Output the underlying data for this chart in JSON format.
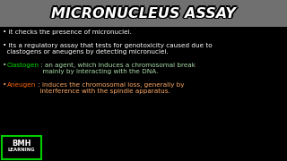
{
  "bg_color": "#000000",
  "title_bg_color": "#707070",
  "title_text": "MICRONUCLEUS ASSAY",
  "title_color": "#FFFFFF",
  "title_outline_color": "#000000",
  "line1": "• it checks the presence of micronuclei.",
  "line1_color": "#FFFFFF",
  "line2": "• its a regulatory assay that tests for genotoxicity caused due to\n  clastogens or aneugens by detecting micronuclei.",
  "line2_color": "#FFFFFF",
  "line3_bullet": "• ",
  "line3_keyword": "Clastogen",
  "line3_keyword_color": "#00DD00",
  "line3_rest": " : an agent, which induces a chromosomal break\n  mainly by interacting with the DNA.",
  "line3_color": "#AADDAA",
  "line4_bullet": "• ",
  "line4_keyword": "Aneugen",
  "line4_keyword_color": "#FF6600",
  "line4_rest": " : induces the chromosomal loss, generally by\n  interference with the spindle apparatus.",
  "line4_color": "#FFAA66",
  "logo_border_color": "#00CC00",
  "logo_text_bmh": "BMH",
  "logo_text_learning": "LEARNING",
  "figsize": [
    3.2,
    1.8
  ],
  "dpi": 100
}
